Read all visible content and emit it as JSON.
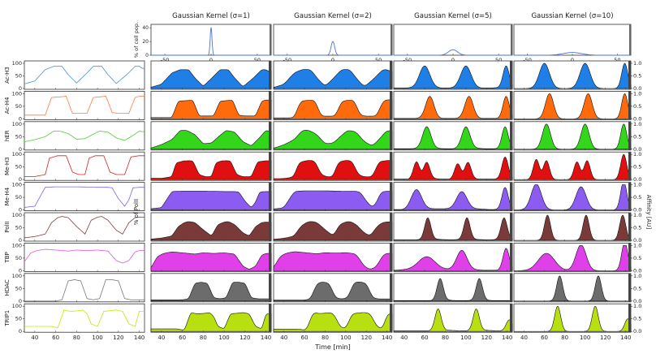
{
  "figure": {
    "xlabel": "Time [min]",
    "left_ylabel": "% of PolII",
    "right_ylabel": "Affinity [AU]",
    "kernel_ylabel": "% of cell pop.",
    "x_ticks": [
      40,
      60,
      80,
      100,
      120,
      140
    ],
    "left_y_ticks": [
      0,
      50,
      100
    ],
    "right_y_ticks": [
      "0.0",
      "0.5",
      "1.0"
    ],
    "kernel_x_ticks": [
      -50,
      0,
      50
    ],
    "kernel_y_ticks": [
      0,
      20,
      40
    ]
  },
  "chart_data": {
    "type": "area",
    "x_range": [
      30,
      145
    ],
    "kernel_x_range": [
      -65,
      65
    ],
    "kernel_y_range": [
      0,
      45
    ],
    "kernels": [
      {
        "title": "Gaussian Kernel (σ=1)",
        "sigma": 1
      },
      {
        "title": "Gaussian Kernel (σ=2)",
        "sigma": 2
      },
      {
        "title": "Gaussian Kernel (σ=5)",
        "sigma": 5
      },
      {
        "title": "Gaussian Kernel (σ=10)",
        "sigma": 10
      }
    ],
    "proteins": [
      {
        "name": "Ac-H3",
        "color": "#1f7fe6",
        "raw_color": "#4a8fdc",
        "flat": false,
        "times": [
          30,
          40,
          50,
          58,
          62,
          66,
          72,
          80,
          90,
          96,
          100,
          104,
          110,
          118,
          128,
          136,
          140,
          143
        ],
        "values": [
          18,
          30,
          75,
          88,
          88,
          88,
          55,
          22,
          62,
          88,
          88,
          88,
          55,
          20,
          55,
          88,
          88,
          80
        ],
        "peaks": [
          [
            60,
            1.0,
            5
          ],
          [
            100,
            1.0,
            5
          ],
          [
            139,
            1.0,
            3
          ]
        ]
      },
      {
        "name": "Ac-H4",
        "color": "#ff6a0d",
        "raw_color": "#ff7a3d",
        "flat": false,
        "times": [
          30,
          40,
          50,
          56,
          66,
          70,
          76,
          82,
          90,
          96,
          104,
          108,
          114,
          120,
          130,
          136,
          140,
          143
        ],
        "values": [
          15,
          15,
          15,
          85,
          88,
          90,
          22,
          22,
          22,
          85,
          88,
          90,
          25,
          22,
          22,
          85,
          90,
          90
        ],
        "peaks": [
          [
            65,
            1.0,
            4
          ],
          [
            103,
            1.0,
            4
          ],
          [
            139,
            1.0,
            3
          ]
        ]
      },
      {
        "name": "hER",
        "color": "#33d61a",
        "raw_color": "#4ccc33",
        "flat": false,
        "times": [
          30,
          40,
          50,
          58,
          64,
          72,
          80,
          88,
          96,
          102,
          110,
          118,
          126,
          134,
          140,
          143
        ],
        "values": [
          30,
          38,
          50,
          72,
          72,
          62,
          40,
          42,
          60,
          72,
          68,
          45,
          35,
          55,
          72,
          70
        ],
        "peaks": [
          [
            62,
            1.0,
            4
          ],
          [
            100,
            1.0,
            4
          ],
          [
            138,
            1.0,
            3
          ]
        ]
      },
      {
        "name": "Me-H3",
        "color": "#e01010",
        "raw_color": "#d42020",
        "flat": false,
        "times": [
          30,
          40,
          50,
          54,
          62,
          70,
          76,
          82,
          88,
          92,
          98,
          106,
          112,
          118,
          126,
          132,
          140,
          143
        ],
        "values": [
          12,
          12,
          20,
          85,
          95,
          95,
          30,
          20,
          20,
          85,
          95,
          95,
          30,
          20,
          20,
          90,
          95,
          95
        ],
        "peaks": [
          [
            52,
            0.8,
            3
          ],
          [
            62,
            0.75,
            3
          ],
          [
            92,
            0.7,
            3
          ],
          [
            102,
            0.75,
            3
          ],
          [
            138,
            1.0,
            3
          ]
        ]
      },
      {
        "name": "Me-H4",
        "color": "#8c5cf2",
        "raw_color": "#7a66ee",
        "flat": true,
        "times": [
          30,
          40,
          50,
          60,
          80,
          100,
          110,
          114,
          120,
          126,
          130,
          134,
          140,
          143
        ],
        "values": [
          10,
          15,
          90,
          92,
          92,
          90,
          90,
          88,
          45,
          15,
          40,
          88,
          90,
          90
        ],
        "peaks": [
          [
            52,
            0.9,
            5
          ],
          [
            96,
            0.8,
            5
          ],
          [
            138,
            1.0,
            3
          ]
        ]
      },
      {
        "name": "PolII",
        "color": "#7a3a3a",
        "raw_color": "#803c3c",
        "flat": false,
        "times": [
          30,
          40,
          50,
          56,
          62,
          66,
          72,
          80,
          88,
          94,
          100,
          104,
          110,
          118,
          124,
          130,
          136,
          140,
          143
        ],
        "values": [
          10,
          15,
          25,
          70,
          90,
          95,
          90,
          55,
          25,
          80,
          92,
          95,
          80,
          40,
          25,
          70,
          90,
          92,
          92
        ],
        "peaks": [
          [
            63,
            1.0,
            3
          ],
          [
            101,
            1.0,
            3
          ],
          [
            137,
            1.0,
            3
          ]
        ]
      },
      {
        "name": "TBP",
        "color": "#e040e8",
        "raw_color": "#dd55e0",
        "flat": true,
        "times": [
          30,
          36,
          42,
          50,
          60,
          72,
          80,
          90,
          100,
          110,
          118,
          124,
          130,
          136,
          140,
          143
        ],
        "values": [
          35,
          70,
          80,
          85,
          82,
          78,
          82,
          80,
          82,
          78,
          40,
          30,
          40,
          75,
          80,
          80
        ],
        "peaks": [
          [
            62,
            0.6,
            8
          ],
          [
            96,
            0.9,
            5
          ],
          [
            139,
            1.0,
            3
          ]
        ]
      },
      {
        "name": "HDAC",
        "color": "#6c6c6c",
        "raw_color": "#777777",
        "flat": false,
        "times": [
          30,
          60,
          66,
          72,
          78,
          84,
          90,
          96,
          102,
          108,
          114,
          120,
          126,
          132,
          138,
          143
        ],
        "values": [
          0,
          0,
          5,
          80,
          85,
          80,
          10,
          5,
          10,
          85,
          85,
          80,
          10,
          5,
          5,
          5
        ],
        "peaks": [
          [
            75,
            1.0,
            3
          ],
          [
            113,
            1.0,
            3
          ]
        ]
      },
      {
        "name": "TRIP1",
        "color": "#b8e010",
        "raw_color": "#c6e600",
        "flat": false,
        "times": [
          30,
          55,
          62,
          68,
          74,
          82,
          86,
          90,
          94,
          100,
          106,
          112,
          118,
          124,
          130,
          136,
          140,
          143
        ],
        "values": [
          20,
          20,
          15,
          85,
          80,
          82,
          85,
          70,
          30,
          20,
          80,
          82,
          85,
          80,
          30,
          20,
          80,
          80
        ],
        "peaks": [
          [
            73,
            1.0,
            3
          ],
          [
            110,
            1.0,
            3
          ],
          [
            142,
            0.5,
            3
          ]
        ]
      }
    ]
  }
}
